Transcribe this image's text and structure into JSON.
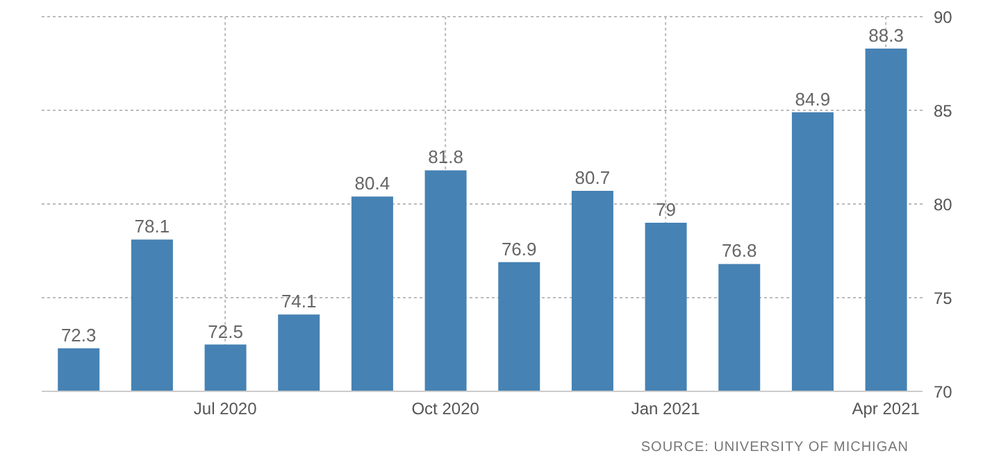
{
  "chart_data": {
    "type": "bar",
    "categories": [
      null,
      null,
      "Jul 2020",
      null,
      null,
      "Oct 2020",
      null,
      null,
      "Jan 2021",
      null,
      null,
      "Apr 2021"
    ],
    "values": [
      72.3,
      78.1,
      72.5,
      74.1,
      80.4,
      81.8,
      76.9,
      80.7,
      79,
      76.8,
      84.9,
      88.3
    ],
    "color": "#4682b4",
    "ylim": [
      70,
      90
    ],
    "yticks": [
      70,
      75,
      80,
      85,
      90
    ],
    "grid": true,
    "data_labels": true,
    "annotations": [
      "SOURCE: UNIVERSITY OF MICHIGAN"
    ]
  }
}
